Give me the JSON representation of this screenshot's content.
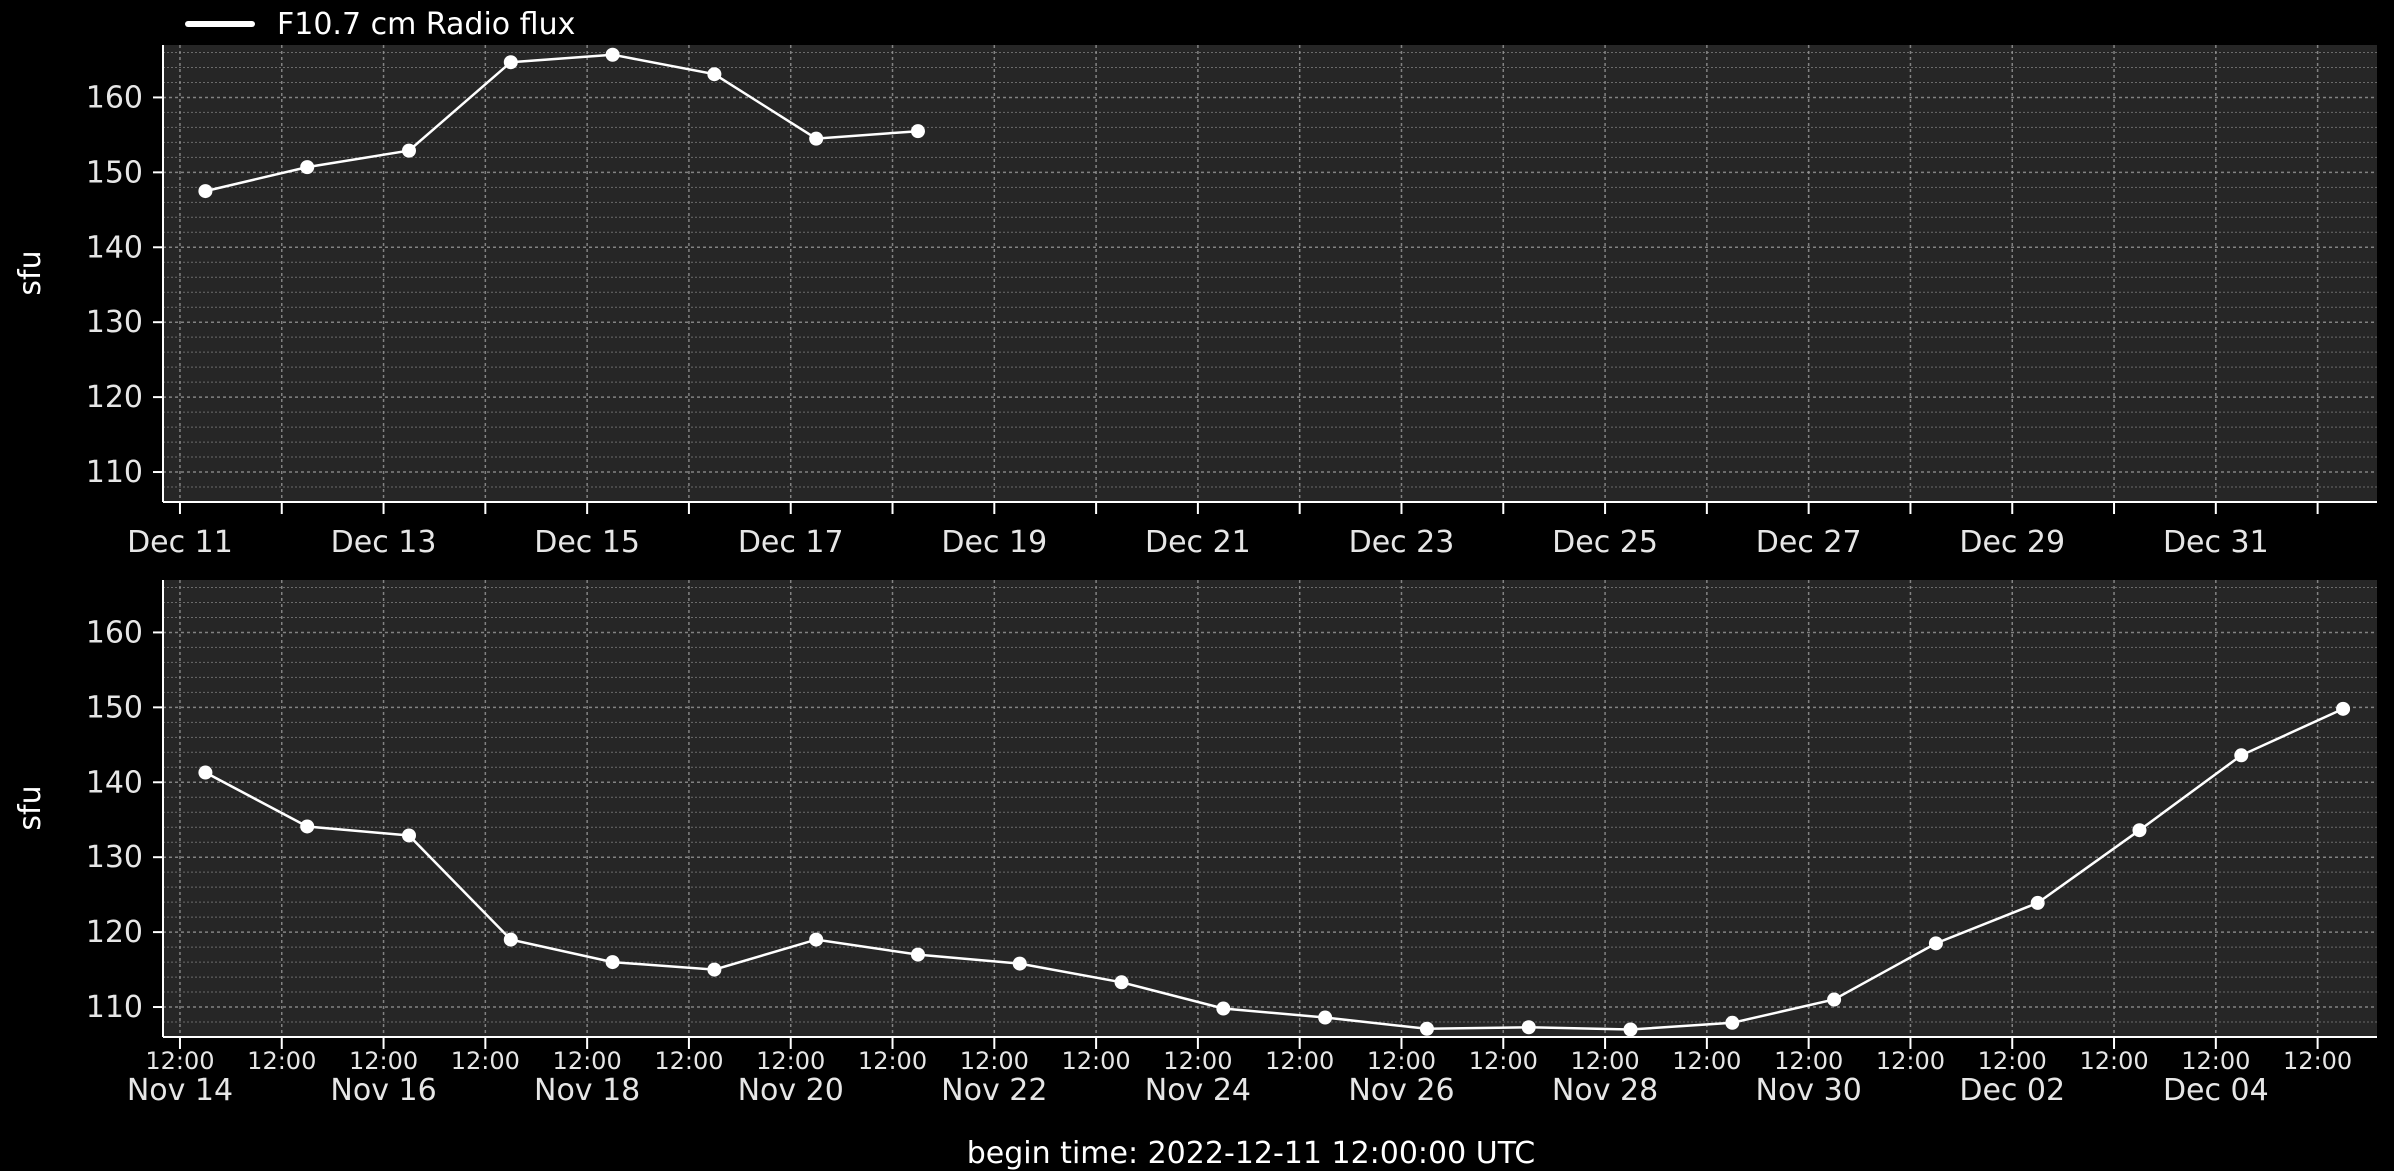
{
  "legend": {
    "label": "F10.7 cm Radio flux",
    "color": "#ffffff"
  },
  "footer": {
    "begin_time": "begin time: 2022-12-11 12:00:00 UTC"
  },
  "style": {
    "background": "#000000",
    "plot_bg": "#262626",
    "grid_color": "#9a9a9a",
    "line_color": "#ffffff"
  },
  "chart_data": [
    {
      "type": "line",
      "panel": "top",
      "ylabel": "sfu",
      "xlabel": "",
      "ylim": [
        106,
        167
      ],
      "yticks": [
        110,
        120,
        130,
        140,
        150,
        160
      ],
      "xlim": [
        "2022-12-10T20:00",
        "2023-01-01T14:00"
      ],
      "xticks": [
        {
          "date": "2022-12-11",
          "label": "Dec 11"
        },
        {
          "date": "2022-12-12",
          "label": ""
        },
        {
          "date": "2022-12-13",
          "label": "Dec 13"
        },
        {
          "date": "2022-12-14",
          "label": ""
        },
        {
          "date": "2022-12-15",
          "label": "Dec 15"
        },
        {
          "date": "2022-12-16",
          "label": ""
        },
        {
          "date": "2022-12-17",
          "label": "Dec 17"
        },
        {
          "date": "2022-12-18",
          "label": ""
        },
        {
          "date": "2022-12-19",
          "label": "Dec 19"
        },
        {
          "date": "2022-12-20",
          "label": ""
        },
        {
          "date": "2022-12-21",
          "label": "Dec 21"
        },
        {
          "date": "2022-12-22",
          "label": ""
        },
        {
          "date": "2022-12-23",
          "label": "Dec 23"
        },
        {
          "date": "2022-12-24",
          "label": ""
        },
        {
          "date": "2022-12-25",
          "label": "Dec 25"
        },
        {
          "date": "2022-12-26",
          "label": ""
        },
        {
          "date": "2022-12-27",
          "label": "Dec 27"
        },
        {
          "date": "2022-12-28",
          "label": ""
        },
        {
          "date": "2022-12-29",
          "label": "Dec 29"
        },
        {
          "date": "2022-12-30",
          "label": ""
        },
        {
          "date": "2022-12-31",
          "label": "Dec 31"
        },
        {
          "date": "2023-01-01",
          "label": ""
        }
      ],
      "grid": true,
      "series": [
        {
          "name": "F10.7 cm Radio flux",
          "x": [
            "2022-12-11T06:00",
            "2022-12-12T06:00",
            "2022-12-13T06:00",
            "2022-12-14T06:00",
            "2022-12-15T06:00",
            "2022-12-16T06:00",
            "2022-12-17T06:00",
            "2022-12-18T06:00"
          ],
          "y": [
            147.5,
            150.7,
            152.9,
            164.7,
            165.7,
            163.1,
            154.5,
            155.5
          ]
        }
      ]
    },
    {
      "type": "line",
      "panel": "bottom",
      "ylabel": "sfu",
      "xlabel": "",
      "ylim": [
        106,
        167
      ],
      "yticks": [
        110,
        120,
        130,
        140,
        150,
        160
      ],
      "xlim": [
        "2022-11-13T20:00",
        "2022-12-05T14:00"
      ],
      "xticks": [
        {
          "date": "2022-11-14T00:00",
          "label": "Nov 14"
        },
        {
          "date": "2022-11-15T00:00",
          "label": ""
        },
        {
          "date": "2022-11-16T00:00",
          "label": "Nov 16"
        },
        {
          "date": "2022-11-17T00:00",
          "label": ""
        },
        {
          "date": "2022-11-18T00:00",
          "label": "Nov 18"
        },
        {
          "date": "2022-11-19T00:00",
          "label": ""
        },
        {
          "date": "2022-11-20T00:00",
          "label": "Nov 20"
        },
        {
          "date": "2022-11-21T00:00",
          "label": ""
        },
        {
          "date": "2022-11-22T00:00",
          "label": "Nov 22"
        },
        {
          "date": "2022-11-23T00:00",
          "label": ""
        },
        {
          "date": "2022-11-24T00:00",
          "label": "Nov 24"
        },
        {
          "date": "2022-11-25T00:00",
          "label": ""
        },
        {
          "date": "2022-11-26T00:00",
          "label": "Nov 26"
        },
        {
          "date": "2022-11-27T00:00",
          "label": ""
        },
        {
          "date": "2022-11-28T00:00",
          "label": "Nov 28"
        },
        {
          "date": "2022-11-29T00:00",
          "label": ""
        },
        {
          "date": "2022-11-30T00:00",
          "label": "Nov 30"
        },
        {
          "date": "2022-12-01T00:00",
          "label": ""
        },
        {
          "date": "2022-12-02T00:00",
          "label": "Dec 02"
        },
        {
          "date": "2022-12-03T00:00",
          "label": ""
        },
        {
          "date": "2022-12-04T00:00",
          "label": "Dec 04"
        },
        {
          "date": "2022-12-05T00:00",
          "label": ""
        }
      ],
      "minor_ticks": [
        {
          "date": "2022-11-14T00:00",
          "label": "12:00"
        },
        {
          "date": "2022-11-15T00:00",
          "label": "12:00"
        },
        {
          "date": "2022-11-16T00:00",
          "label": "12:00"
        },
        {
          "date": "2022-11-17T00:00",
          "label": "12:00"
        },
        {
          "date": "2022-11-18T00:00",
          "label": "12:00"
        },
        {
          "date": "2022-11-19T00:00",
          "label": "12:00"
        },
        {
          "date": "2022-11-20T00:00",
          "label": "12:00"
        },
        {
          "date": "2022-11-21T00:00",
          "label": "12:00"
        },
        {
          "date": "2022-11-22T00:00",
          "label": "12:00"
        },
        {
          "date": "2022-11-23T00:00",
          "label": "12:00"
        },
        {
          "date": "2022-11-24T00:00",
          "label": "12:00"
        },
        {
          "date": "2022-11-25T00:00",
          "label": "12:00"
        },
        {
          "date": "2022-11-26T00:00",
          "label": "12:00"
        },
        {
          "date": "2022-11-27T00:00",
          "label": "12:00"
        },
        {
          "date": "2022-11-28T00:00",
          "label": "12:00"
        },
        {
          "date": "2022-11-29T00:00",
          "label": "12:00"
        },
        {
          "date": "2022-11-30T00:00",
          "label": "12:00"
        },
        {
          "date": "2022-12-01T00:00",
          "label": "12:00"
        },
        {
          "date": "2022-12-02T00:00",
          "label": "12:00"
        },
        {
          "date": "2022-12-03T00:00",
          "label": "12:00"
        },
        {
          "date": "2022-12-04T00:00",
          "label": "12:00"
        },
        {
          "date": "2022-12-05T00:00",
          "label": "12:00"
        }
      ],
      "grid": true,
      "series": [
        {
          "name": "F10.7 cm Radio flux",
          "x": [
            "2022-11-14T06:00",
            "2022-11-15T06:00",
            "2022-11-16T06:00",
            "2022-11-17T06:00",
            "2022-11-18T06:00",
            "2022-11-19T06:00",
            "2022-11-20T06:00",
            "2022-11-21T06:00",
            "2022-11-22T06:00",
            "2022-11-23T06:00",
            "2022-11-24T06:00",
            "2022-11-25T06:00",
            "2022-11-26T06:00",
            "2022-11-27T06:00",
            "2022-11-28T06:00",
            "2022-11-29T06:00",
            "2022-11-30T06:00",
            "2022-12-01T06:00",
            "2022-12-02T06:00",
            "2022-12-03T06:00",
            "2022-12-04T06:00",
            "2022-12-05T06:00"
          ],
          "y": [
            141.3,
            134.1,
            132.9,
            119.0,
            116.0,
            115.0,
            119.0,
            117.0,
            115.8,
            113.3,
            109.8,
            108.6,
            107.1,
            107.3,
            107.0,
            107.9,
            111.0,
            118.5,
            123.9,
            133.6,
            143.6,
            149.8
          ]
        }
      ]
    }
  ]
}
